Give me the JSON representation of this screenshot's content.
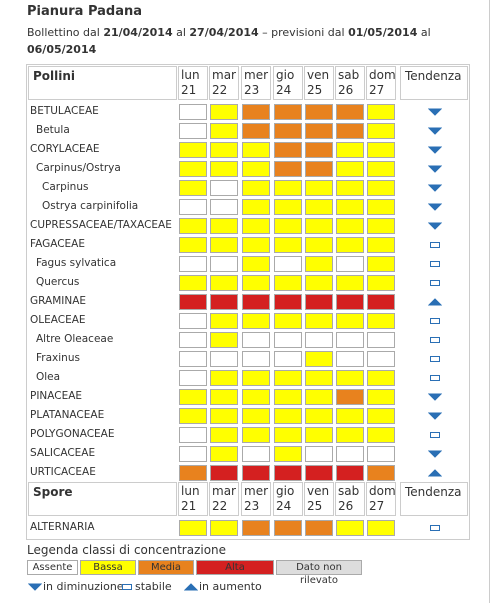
{
  "header": {
    "title": "Pianura Padana",
    "bulletin": [
      "Bollettino dal",
      "21/04/2014",
      "al",
      "27/04/2014",
      "– previsioni dal",
      "01/05/2014",
      "al",
      "06/05/2014"
    ]
  },
  "table": {
    "days": [
      [
        "lun",
        "21"
      ],
      [
        "mar",
        "22"
      ],
      [
        "mer",
        "23"
      ],
      [
        "gio",
        "24"
      ],
      [
        "ven",
        "25"
      ],
      [
        "sab",
        "26"
      ],
      [
        "dom",
        "27"
      ]
    ],
    "trend_header": "Tendenza",
    "pollini": {
      "header": "Pollini",
      "rows": [
        {
          "name": "BETULACEAE",
          "days": [
            0,
            1,
            2,
            2,
            2,
            2,
            1
          ],
          "trend": 0,
          "children": [
            {
              "name": "Betula",
              "days": [
                0,
                1,
                2,
                2,
                2,
                2,
                1
              ],
              "trend": 0
            }
          ]
        },
        {
          "name": "CORYLACEAE",
          "days": [
            1,
            1,
            1,
            2,
            2,
            1,
            1
          ],
          "trend": 0,
          "children": [
            {
              "name": "Carpinus/Ostrya",
              "days": [
                1,
                1,
                1,
                2,
                2,
                1,
                1
              ],
              "trend": 0,
              "children": [
                {
                  "name": "Carpinus",
                  "days": [
                    1,
                    0,
                    1,
                    1,
                    1,
                    1,
                    1
                  ],
                  "trend": 0
                },
                {
                  "name": "Ostrya carpinifolia",
                  "days": [
                    0,
                    0,
                    1,
                    1,
                    1,
                    1,
                    1
                  ],
                  "trend": 0
                }
              ]
            }
          ]
        },
        {
          "name": "CUPRESSACEAE/TAXACEAE",
          "days": [
            1,
            1,
            1,
            1,
            1,
            1,
            1
          ],
          "trend": 0
        },
        {
          "name": "FAGACEAE",
          "days": [
            1,
            1,
            1,
            1,
            1,
            1,
            1
          ],
          "trend": 1,
          "children": [
            {
              "name": "Fagus sylvatica",
              "days": [
                0,
                0,
                1,
                0,
                1,
                0,
                1
              ],
              "trend": 1
            },
            {
              "name": "Quercus",
              "days": [
                1,
                1,
                1,
                1,
                1,
                1,
                1
              ],
              "trend": 1
            }
          ]
        },
        {
          "name": "GRAMINAE",
          "days": [
            3,
            3,
            3,
            3,
            3,
            3,
            3
          ],
          "trend": 2
        },
        {
          "name": "OLEACEAE",
          "days": [
            0,
            1,
            1,
            1,
            1,
            1,
            1
          ],
          "trend": 1,
          "children": [
            {
              "name": "Altre Oleaceae",
              "days": [
                0,
                1,
                0,
                0,
                0,
                0,
                0
              ],
              "trend": 1
            },
            {
              "name": "Fraxinus",
              "days": [
                0,
                0,
                0,
                0,
                1,
                0,
                0
              ],
              "trend": 1
            },
            {
              "name": "Olea",
              "days": [
                0,
                1,
                1,
                1,
                1,
                1,
                1
              ],
              "trend": 1
            }
          ]
        },
        {
          "name": "PINACEAE",
          "days": [
            1,
            1,
            1,
            1,
            1,
            2,
            1
          ],
          "trend": 0
        },
        {
          "name": "PLATANACEAE",
          "days": [
            1,
            1,
            1,
            1,
            1,
            1,
            1
          ],
          "trend": 0
        },
        {
          "name": "POLYGONACEAE",
          "days": [
            0,
            1,
            1,
            1,
            1,
            1,
            1
          ],
          "trend": 1
        },
        {
          "name": "SALICACEAE",
          "days": [
            0,
            1,
            0,
            1,
            0,
            0,
            0
          ],
          "trend": 0
        },
        {
          "name": "URTICACEAE",
          "days": [
            2,
            3,
            3,
            3,
            3,
            3,
            2
          ],
          "trend": 2
        }
      ]
    },
    "spore": {
      "header": "Spore",
      "rows": [
        {
          "name": "ALTERNARIA",
          "days": [
            1,
            1,
            2,
            2,
            2,
            1,
            1
          ],
          "trend": 1
        }
      ]
    }
  },
  "legend": {
    "title": "Legenda classi di concentrazione",
    "classes": [
      {
        "label": "Assente",
        "color": "#ffffff"
      },
      {
        "label": "Bassa",
        "color": "#ffff00"
      },
      {
        "label": "Media",
        "color": "#e8821e"
      },
      {
        "label": "Alta",
        "color": "#d42020"
      },
      {
        "label": "Dato non rilevato",
        "color": "#dddddd"
      }
    ],
    "trends": [
      "in diminuzione",
      "stabile",
      "in aumento"
    ]
  }
}
